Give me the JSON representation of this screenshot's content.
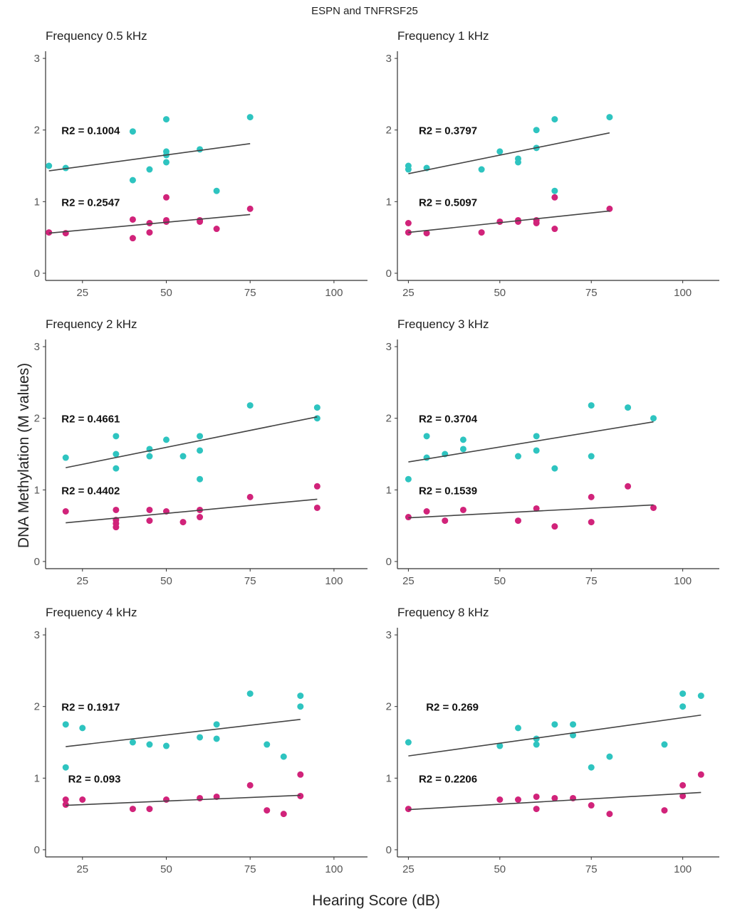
{
  "figure": {
    "title": "ESPN and TNFRSF25",
    "xlabel": "Hearing Score (dB)",
    "ylabel": "DNA Methylation (M values)",
    "colors": {
      "esp_series": "#2ec4c0",
      "tnf_series": "#d1237a",
      "fit_line": "#444444"
    }
  },
  "chart_data": [
    {
      "type": "scatter",
      "title": "Frequency 0.5 kHz",
      "xlim": [
        14,
        110
      ],
      "ylim": [
        -0.1,
        3.1
      ],
      "xticks": [
        25,
        50,
        75,
        100
      ],
      "yticks": [
        0,
        1,
        2,
        3
      ],
      "series": [
        {
          "points": [
            [
              15,
              1.5
            ],
            [
              20,
              1.47
            ],
            [
              40,
              1.3
            ],
            [
              40,
              1.98
            ],
            [
              45,
              1.45
            ],
            [
              50,
              1.55
            ],
            [
              50,
              1.65
            ],
            [
              50,
              1.7
            ],
            [
              50,
              2.15
            ],
            [
              60,
              1.73
            ],
            [
              65,
              1.15
            ],
            [
              75,
              2.18
            ]
          ],
          "fit": [
            [
              15,
              1.43
            ],
            [
              75,
              1.81
            ]
          ],
          "r2_label": "R2 = 0.1004",
          "r2_pos": [
            20,
            1.99
          ]
        },
        {
          "points": [
            [
              15,
              0.57
            ],
            [
              20,
              0.56
            ],
            [
              40,
              0.49
            ],
            [
              40,
              0.75
            ],
            [
              45,
              0.57
            ],
            [
              45,
              0.7
            ],
            [
              50,
              0.72
            ],
            [
              50,
              0.74
            ],
            [
              50,
              1.06
            ],
            [
              60,
              0.72
            ],
            [
              60,
              0.74
            ],
            [
              65,
              0.62
            ],
            [
              75,
              0.9
            ]
          ],
          "fit": [
            [
              15,
              0.56
            ],
            [
              75,
              0.82
            ]
          ],
          "r2_label": "R2 = 0.2547",
          "r2_pos": [
            20,
            0.99
          ]
        }
      ]
    },
    {
      "type": "scatter",
      "title": "Frequency 1 kHz",
      "xlim": [
        22,
        110
      ],
      "ylim": [
        -0.1,
        3.1
      ],
      "xticks": [
        25,
        50,
        75,
        100
      ],
      "yticks": [
        0,
        1,
        2,
        3
      ],
      "series": [
        {
          "points": [
            [
              25,
              1.45
            ],
            [
              25,
              1.5
            ],
            [
              30,
              1.47
            ],
            [
              45,
              1.45
            ],
            [
              50,
              1.7
            ],
            [
              55,
              1.55
            ],
            [
              55,
              1.6
            ],
            [
              60,
              1.75
            ],
            [
              60,
              2.0
            ],
            [
              65,
              1.15
            ],
            [
              65,
              2.15
            ],
            [
              80,
              2.18
            ]
          ],
          "fit": [
            [
              25,
              1.39
            ],
            [
              80,
              1.96
            ]
          ],
          "r2_label": "R2 = 0.3797",
          "r2_pos": [
            29,
            1.99
          ]
        },
        {
          "points": [
            [
              25,
              0.57
            ],
            [
              25,
              0.7
            ],
            [
              30,
              0.56
            ],
            [
              45,
              0.57
            ],
            [
              50,
              0.72
            ],
            [
              55,
              0.72
            ],
            [
              55,
              0.74
            ],
            [
              60,
              0.7
            ],
            [
              60,
              0.74
            ],
            [
              65,
              0.62
            ],
            [
              65,
              1.06
            ],
            [
              80,
              0.9
            ]
          ],
          "fit": [
            [
              25,
              0.57
            ],
            [
              80,
              0.87
            ]
          ],
          "r2_label": "R2 = 0.5097",
          "r2_pos": [
            29,
            0.99
          ]
        }
      ]
    },
    {
      "type": "scatter",
      "title": "Frequency 2 kHz",
      "xlim": [
        14,
        110
      ],
      "ylim": [
        -0.1,
        3.1
      ],
      "xticks": [
        25,
        50,
        75,
        100
      ],
      "yticks": [
        0,
        1,
        2,
        3
      ],
      "series": [
        {
          "points": [
            [
              20,
              1.45
            ],
            [
              35,
              1.3
            ],
            [
              35,
              1.5
            ],
            [
              35,
              1.75
            ],
            [
              45,
              1.47
            ],
            [
              45,
              1.57
            ],
            [
              50,
              1.7
            ],
            [
              55,
              1.47
            ],
            [
              60,
              1.15
            ],
            [
              60,
              1.55
            ],
            [
              60,
              1.75
            ],
            [
              75,
              2.18
            ],
            [
              95,
              2.0
            ],
            [
              95,
              2.15
            ]
          ],
          "fit": [
            [
              20,
              1.31
            ],
            [
              95,
              2.02
            ]
          ],
          "r2_label": "R2 = 0.4661",
          "r2_pos": [
            20,
            1.99
          ]
        },
        {
          "points": [
            [
              20,
              0.7
            ],
            [
              35,
              0.48
            ],
            [
              35,
              0.53
            ],
            [
              35,
              0.58
            ],
            [
              35,
              0.72
            ],
            [
              45,
              0.57
            ],
            [
              45,
              0.72
            ],
            [
              50,
              0.7
            ],
            [
              55,
              0.55
            ],
            [
              60,
              0.62
            ],
            [
              60,
              0.72
            ],
            [
              75,
              0.9
            ],
            [
              95,
              0.75
            ],
            [
              95,
              1.05
            ]
          ],
          "fit": [
            [
              20,
              0.54
            ],
            [
              95,
              0.87
            ]
          ],
          "r2_label": "R2 = 0.4402",
          "r2_pos": [
            20,
            0.99
          ]
        }
      ]
    },
    {
      "type": "scatter",
      "title": "Frequency 3 kHz",
      "xlim": [
        22,
        110
      ],
      "ylim": [
        -0.1,
        3.1
      ],
      "xticks": [
        25,
        50,
        75,
        100
      ],
      "yticks": [
        0,
        1,
        2,
        3
      ],
      "series": [
        {
          "points": [
            [
              25,
              1.15
            ],
            [
              30,
              1.45
            ],
            [
              30,
              1.75
            ],
            [
              35,
              1.5
            ],
            [
              40,
              1.57
            ],
            [
              40,
              1.7
            ],
            [
              55,
              1.47
            ],
            [
              60,
              1.55
            ],
            [
              60,
              1.75
            ],
            [
              65,
              1.3
            ],
            [
              75,
              1.47
            ],
            [
              75,
              2.18
            ],
            [
              85,
              2.15
            ],
            [
              92,
              2.0
            ]
          ],
          "fit": [
            [
              25,
              1.39
            ],
            [
              92,
              1.95
            ]
          ],
          "r2_label": "R2 = 0.3704",
          "r2_pos": [
            29,
            1.99
          ]
        },
        {
          "points": [
            [
              25,
              0.62
            ],
            [
              30,
              0.7
            ],
            [
              35,
              0.57
            ],
            [
              40,
              0.72
            ],
            [
              55,
              0.57
            ],
            [
              60,
              0.74
            ],
            [
              65,
              0.49
            ],
            [
              75,
              0.55
            ],
            [
              75,
              0.9
            ],
            [
              85,
              1.05
            ],
            [
              92,
              0.75
            ]
          ],
          "fit": [
            [
              25,
              0.61
            ],
            [
              92,
              0.79
            ]
          ],
          "r2_label": "R2 = 0.1539",
          "r2_pos": [
            29,
            0.99
          ]
        }
      ]
    },
    {
      "type": "scatter",
      "title": "Frequency 4 kHz",
      "xlim": [
        14,
        110
      ],
      "ylim": [
        -0.1,
        3.1
      ],
      "xticks": [
        25,
        50,
        75,
        100
      ],
      "yticks": [
        0,
        1,
        2,
        3
      ],
      "series": [
        {
          "points": [
            [
              20,
              1.15
            ],
            [
              20,
              1.75
            ],
            [
              25,
              1.7
            ],
            [
              40,
              1.5
            ],
            [
              45,
              1.47
            ],
            [
              50,
              1.45
            ],
            [
              60,
              1.57
            ],
            [
              65,
              1.55
            ],
            [
              65,
              1.75
            ],
            [
              75,
              2.18
            ],
            [
              80,
              1.47
            ],
            [
              85,
              1.3
            ],
            [
              90,
              2.0
            ],
            [
              90,
              2.15
            ]
          ],
          "fit": [
            [
              20,
              1.44
            ],
            [
              90,
              1.82
            ]
          ],
          "r2_label": "R2 = 0.1917",
          "r2_pos": [
            20,
            1.99
          ]
        },
        {
          "points": [
            [
              20,
              0.63
            ],
            [
              20,
              0.7
            ],
            [
              25,
              0.7
            ],
            [
              40,
              0.57
            ],
            [
              45,
              0.57
            ],
            [
              50,
              0.7
            ],
            [
              60,
              0.72
            ],
            [
              65,
              0.74
            ],
            [
              75,
              0.9
            ],
            [
              80,
              0.55
            ],
            [
              85,
              0.5
            ],
            [
              90,
              0.75
            ],
            [
              90,
              1.05
            ]
          ],
          "fit": [
            [
              20,
              0.62
            ],
            [
              90,
              0.76
            ]
          ],
          "r2_label": "R2 = 0.093",
          "r2_pos": [
            22,
            0.99
          ]
        }
      ]
    },
    {
      "type": "scatter",
      "title": "Frequency 8 kHz",
      "xlim": [
        22,
        110
      ],
      "ylim": [
        -0.1,
        3.1
      ],
      "xticks": [
        25,
        50,
        75,
        100
      ],
      "yticks": [
        0,
        1,
        2,
        3
      ],
      "series": [
        {
          "points": [
            [
              25,
              1.5
            ],
            [
              50,
              1.45
            ],
            [
              55,
              1.7
            ],
            [
              60,
              1.47
            ],
            [
              60,
              1.55
            ],
            [
              65,
              1.75
            ],
            [
              70,
              1.6
            ],
            [
              70,
              1.75
            ],
            [
              75,
              1.15
            ],
            [
              80,
              1.3
            ],
            [
              95,
              1.47
            ],
            [
              100,
              2.0
            ],
            [
              100,
              2.18
            ],
            [
              105,
              2.15
            ]
          ],
          "fit": [
            [
              25,
              1.31
            ],
            [
              105,
              1.88
            ]
          ],
          "r2_label": "R2 = 0.269",
          "r2_pos": [
            31,
            1.99
          ]
        },
        {
          "points": [
            [
              25,
              0.57
            ],
            [
              50,
              0.7
            ],
            [
              55,
              0.7
            ],
            [
              60,
              0.57
            ],
            [
              60,
              0.74
            ],
            [
              65,
              0.72
            ],
            [
              70,
              0.72
            ],
            [
              75,
              0.62
            ],
            [
              80,
              0.5
            ],
            [
              95,
              0.55
            ],
            [
              100,
              0.75
            ],
            [
              100,
              0.9
            ],
            [
              105,
              1.05
            ]
          ],
          "fit": [
            [
              25,
              0.56
            ],
            [
              105,
              0.8
            ]
          ],
          "r2_label": "R2 = 0.2206",
          "r2_pos": [
            29,
            0.99
          ]
        }
      ]
    }
  ]
}
